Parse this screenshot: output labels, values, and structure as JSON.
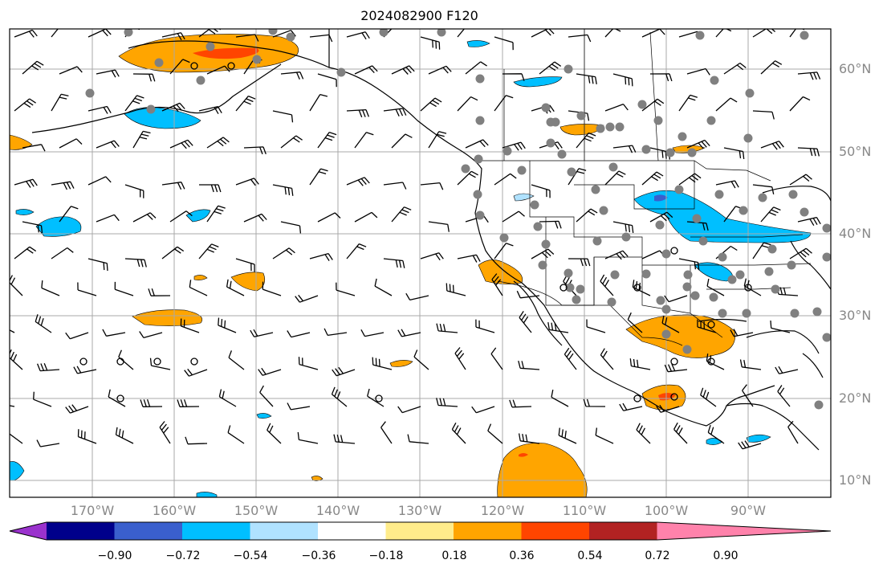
{
  "title": "2024082900 F120",
  "lon_labels": [
    "170°W",
    "160°W",
    "150°W",
    "140°W",
    "130°W",
    "120°W",
    "110°W",
    "100°W",
    "90°W"
  ],
  "lat_labels": [
    "60°N",
    "50°N",
    "40°N",
    "30°N",
    "20°N",
    "10°N"
  ],
  "colorbar": {
    "ticks": [
      "−0.90",
      "−0.72",
      "−0.54",
      "−0.36",
      "−0.18",
      "0.18",
      "0.36",
      "0.54",
      "0.72",
      "0.90"
    ],
    "colors": [
      "#9a32cd",
      "#00008b",
      "#3a5fcd",
      "#00bfff",
      "#b0e2ff",
      "#ffffff",
      "#ffec8b",
      "#ffa500",
      "#ff4500",
      "#b22222",
      "#ff82ab"
    ]
  },
  "map_colors": {
    "orange": "#ffa500",
    "red": "#ff4500",
    "blue": "#00bfff",
    "lightblue": "#b0e2ff",
    "darkblue": "#3a5fcd",
    "yellow": "#ffec8b",
    "station": "#808080",
    "grid": "#a9a9a9"
  }
}
